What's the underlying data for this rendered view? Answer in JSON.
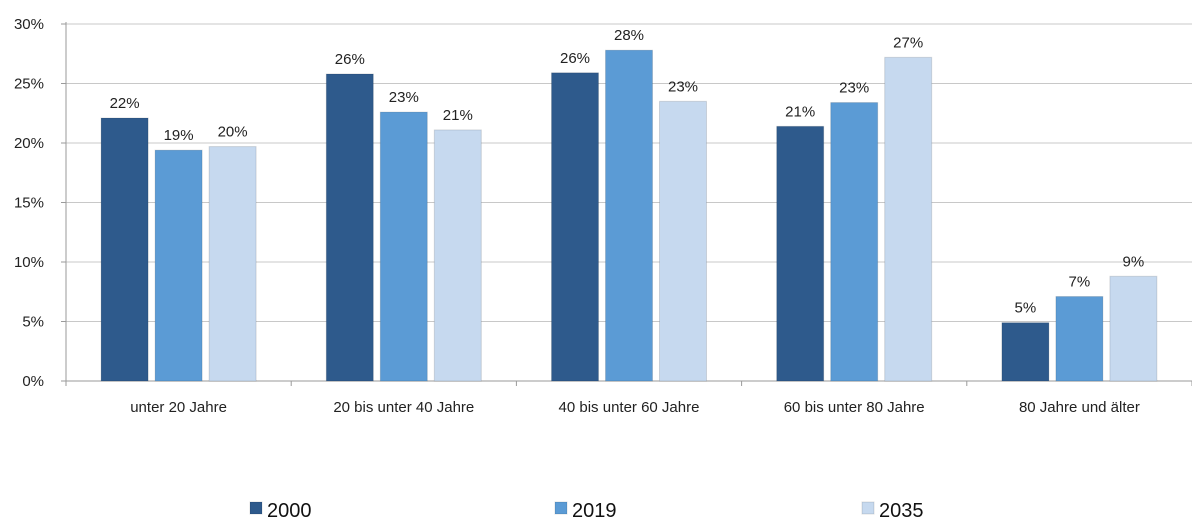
{
  "chart_data": {
    "type": "bar",
    "categories": [
      "unter 20 Jahre",
      "20 bis unter 40 Jahre",
      "40 bis unter 60 Jahre",
      "60 bis unter 80 Jahre",
      "80 Jahre und älter"
    ],
    "series": [
      {
        "name": "2000",
        "values": [
          22,
          26,
          26,
          21,
          5
        ],
        "data_values": [
          22.1,
          25.8,
          25.9,
          21.4,
          4.9
        ],
        "color": "#2e5a8c"
      },
      {
        "name": "2019",
        "values": [
          19,
          23,
          28,
          23,
          7
        ],
        "data_values": [
          19.4,
          22.6,
          27.8,
          23.4,
          7.1
        ],
        "color": "#5b9bd5"
      },
      {
        "name": "2035",
        "values": [
          20,
          21,
          23,
          27,
          9
        ],
        "data_values": [
          19.7,
          21.1,
          23.5,
          27.2,
          8.8
        ],
        "color": "#c6d9ef"
      }
    ],
    "value_suffix": "%",
    "ylim": [
      0,
      30
    ],
    "yticks": [
      0,
      5,
      10,
      15,
      20,
      25,
      30
    ],
    "ytick_labels": [
      "0%",
      "5%",
      "10%",
      "15%",
      "20%",
      "25%",
      "30%"
    ],
    "grid": true,
    "legend_position": "bottom",
    "xlabel": "",
    "ylabel": "",
    "title": ""
  },
  "colors": {
    "grid": "#c8c8c8",
    "axis": "#9a9a9a"
  }
}
